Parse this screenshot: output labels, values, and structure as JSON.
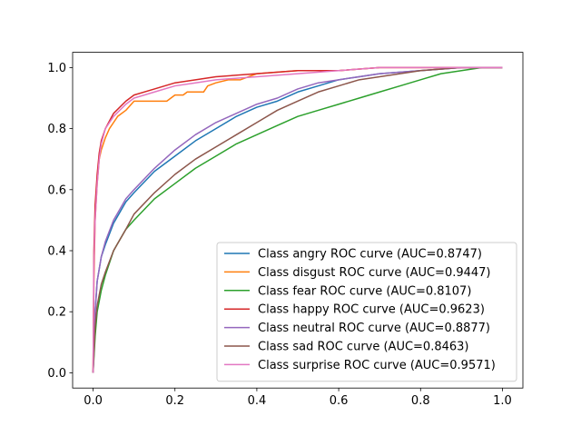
{
  "chart_data": {
    "type": "line",
    "title": "",
    "xlabel": "",
    "ylabel": "",
    "xlim": [
      -0.05,
      1.05
    ],
    "ylim": [
      -0.05,
      1.05
    ],
    "xticks": [
      "0.0",
      "0.2",
      "0.4",
      "0.6",
      "0.8",
      "1.0"
    ],
    "yticks": [
      "0.0",
      "0.2",
      "0.4",
      "0.6",
      "0.8",
      "1.0"
    ],
    "grid": false,
    "legend_position": "lower-right",
    "series": [
      {
        "name": "Class angry ROC curve (AUC=0.8747)",
        "color": "#1f77b4",
        "points": [
          [
            0,
            0
          ],
          [
            0.005,
            0.2
          ],
          [
            0.01,
            0.3
          ],
          [
            0.02,
            0.38
          ],
          [
            0.03,
            0.42
          ],
          [
            0.05,
            0.49
          ],
          [
            0.08,
            0.56
          ],
          [
            0.1,
            0.59
          ],
          [
            0.15,
            0.66
          ],
          [
            0.2,
            0.71
          ],
          [
            0.25,
            0.76
          ],
          [
            0.3,
            0.8
          ],
          [
            0.35,
            0.84
          ],
          [
            0.4,
            0.87
          ],
          [
            0.45,
            0.89
          ],
          [
            0.5,
            0.92
          ],
          [
            0.55,
            0.94
          ],
          [
            0.6,
            0.96
          ],
          [
            0.65,
            0.97
          ],
          [
            0.7,
            0.98
          ],
          [
            0.8,
            0.99
          ],
          [
            0.9,
            1.0
          ],
          [
            1.0,
            1.0
          ]
        ]
      },
      {
        "name": "Class disgust ROC curve (AUC=0.9447)",
        "color": "#ff7f0e",
        "points": [
          [
            0,
            0
          ],
          [
            0.002,
            0.3
          ],
          [
            0.005,
            0.5
          ],
          [
            0.01,
            0.62
          ],
          [
            0.015,
            0.7
          ],
          [
            0.02,
            0.73
          ],
          [
            0.025,
            0.75
          ],
          [
            0.03,
            0.77
          ],
          [
            0.04,
            0.8
          ],
          [
            0.05,
            0.82
          ],
          [
            0.06,
            0.84
          ],
          [
            0.08,
            0.86
          ],
          [
            0.1,
            0.89
          ],
          [
            0.15,
            0.89
          ],
          [
            0.18,
            0.89
          ],
          [
            0.2,
            0.91
          ],
          [
            0.22,
            0.91
          ],
          [
            0.23,
            0.92
          ],
          [
            0.27,
            0.92
          ],
          [
            0.28,
            0.94
          ],
          [
            0.3,
            0.95
          ],
          [
            0.33,
            0.96
          ],
          [
            0.36,
            0.96
          ],
          [
            0.4,
            0.98
          ],
          [
            0.5,
            0.99
          ],
          [
            0.6,
            0.99
          ],
          [
            0.7,
            1.0
          ],
          [
            1.0,
            1.0
          ]
        ]
      },
      {
        "name": "Class fear ROC curve (AUC=0.8107)",
        "color": "#2ca02c",
        "points": [
          [
            0,
            0
          ],
          [
            0.005,
            0.12
          ],
          [
            0.01,
            0.2
          ],
          [
            0.02,
            0.27
          ],
          [
            0.03,
            0.32
          ],
          [
            0.05,
            0.4
          ],
          [
            0.08,
            0.47
          ],
          [
            0.1,
            0.5
          ],
          [
            0.15,
            0.57
          ],
          [
            0.2,
            0.62
          ],
          [
            0.25,
            0.67
          ],
          [
            0.3,
            0.71
          ],
          [
            0.35,
            0.75
          ],
          [
            0.4,
            0.78
          ],
          [
            0.45,
            0.81
          ],
          [
            0.5,
            0.84
          ],
          [
            0.55,
            0.86
          ],
          [
            0.6,
            0.88
          ],
          [
            0.65,
            0.9
          ],
          [
            0.7,
            0.92
          ],
          [
            0.75,
            0.94
          ],
          [
            0.8,
            0.96
          ],
          [
            0.85,
            0.98
          ],
          [
            0.9,
            0.99
          ],
          [
            0.95,
            1.0
          ],
          [
            1.0,
            1.0
          ]
        ]
      },
      {
        "name": "Class happy ROC curve (AUC=0.9623)",
        "color": "#d62728",
        "points": [
          [
            0,
            0
          ],
          [
            0.002,
            0.4
          ],
          [
            0.005,
            0.55
          ],
          [
            0.01,
            0.65
          ],
          [
            0.015,
            0.72
          ],
          [
            0.02,
            0.76
          ],
          [
            0.03,
            0.8
          ],
          [
            0.05,
            0.85
          ],
          [
            0.08,
            0.89
          ],
          [
            0.1,
            0.91
          ],
          [
            0.15,
            0.93
          ],
          [
            0.2,
            0.95
          ],
          [
            0.25,
            0.96
          ],
          [
            0.3,
            0.97
          ],
          [
            0.4,
            0.98
          ],
          [
            0.5,
            0.99
          ],
          [
            0.6,
            0.99
          ],
          [
            0.7,
            1.0
          ],
          [
            1.0,
            1.0
          ]
        ]
      },
      {
        "name": "Class neutral ROC curve (AUC=0.8877)",
        "color": "#9467bd",
        "points": [
          [
            0,
            0
          ],
          [
            0.005,
            0.2
          ],
          [
            0.01,
            0.3
          ],
          [
            0.02,
            0.38
          ],
          [
            0.03,
            0.43
          ],
          [
            0.05,
            0.5
          ],
          [
            0.08,
            0.57
          ],
          [
            0.1,
            0.6
          ],
          [
            0.15,
            0.67
          ],
          [
            0.2,
            0.73
          ],
          [
            0.25,
            0.78
          ],
          [
            0.3,
            0.82
          ],
          [
            0.35,
            0.85
          ],
          [
            0.4,
            0.88
          ],
          [
            0.45,
            0.9
          ],
          [
            0.5,
            0.93
          ],
          [
            0.55,
            0.95
          ],
          [
            0.6,
            0.96
          ],
          [
            0.65,
            0.97
          ],
          [
            0.7,
            0.98
          ],
          [
            0.8,
            0.99
          ],
          [
            0.9,
            1.0
          ],
          [
            1.0,
            1.0
          ]
        ]
      },
      {
        "name": "Class sad ROC curve (AUC=0.8463)",
        "color": "#8c564b",
        "points": [
          [
            0,
            0
          ],
          [
            0.005,
            0.15
          ],
          [
            0.01,
            0.22
          ],
          [
            0.02,
            0.29
          ],
          [
            0.03,
            0.33
          ],
          [
            0.05,
            0.4
          ],
          [
            0.08,
            0.47
          ],
          [
            0.1,
            0.52
          ],
          [
            0.15,
            0.59
          ],
          [
            0.2,
            0.65
          ],
          [
            0.25,
            0.7
          ],
          [
            0.3,
            0.74
          ],
          [
            0.35,
            0.78
          ],
          [
            0.4,
            0.82
          ],
          [
            0.45,
            0.86
          ],
          [
            0.5,
            0.89
          ],
          [
            0.55,
            0.92
          ],
          [
            0.6,
            0.94
          ],
          [
            0.65,
            0.96
          ],
          [
            0.7,
            0.97
          ],
          [
            0.8,
            0.99
          ],
          [
            0.9,
            1.0
          ],
          [
            1.0,
            1.0
          ]
        ]
      },
      {
        "name": "Class surprise ROC curve (AUC=0.9571)",
        "color": "#e377c2",
        "points": [
          [
            0,
            0
          ],
          [
            0.002,
            0.35
          ],
          [
            0.005,
            0.5
          ],
          [
            0.01,
            0.62
          ],
          [
            0.015,
            0.7
          ],
          [
            0.02,
            0.75
          ],
          [
            0.03,
            0.8
          ],
          [
            0.05,
            0.84
          ],
          [
            0.08,
            0.88
          ],
          [
            0.1,
            0.9
          ],
          [
            0.15,
            0.92
          ],
          [
            0.2,
            0.94
          ],
          [
            0.25,
            0.95
          ],
          [
            0.3,
            0.96
          ],
          [
            0.4,
            0.97
          ],
          [
            0.5,
            0.98
          ],
          [
            0.6,
            0.99
          ],
          [
            0.7,
            1.0
          ],
          [
            1.0,
            1.0
          ]
        ]
      }
    ]
  }
}
